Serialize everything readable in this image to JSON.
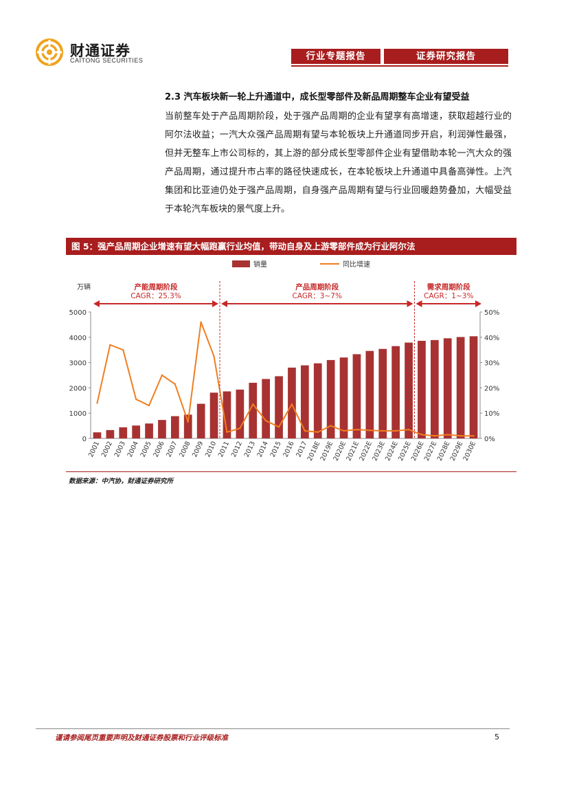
{
  "header": {
    "logo_cn": "财通证券",
    "logo_en": "CAITONG SECURITIES",
    "tab1": "行业专题报告",
    "tab2": "证券研究报告",
    "accent": "#a81d1d"
  },
  "section": {
    "title": "2.3  汽车板块新一轮上升通道中，成长型零部件及新品周期整车企业有望受益",
    "body": "当前整车处于产品周期阶段，处于强产品周期的企业有望享有高增速，获取超越行业的阿尔法收益；一汽大众强产品周期有望与本轮板块上升通道同步开启，利润弹性最强，但并无整车上市公司标的，其上游的部分成长型零部件企业有望借助本轮一汽大众的强产品周期，通过提升市占率的路径快速成长，在本轮板块上升通道中具备高弹性。上汽集团和比亚迪仍处于强产品周期，自身强产品周期有望与行业回暖趋势叠加，大幅受益于本轮汽车板块的景气度上升。"
  },
  "figure": {
    "title": "图 5：强产品周期企业增速有望大幅跑赢行业均值，带动自身及上游零部件成为行业阿尔法",
    "source": "数据来源：中汽协，财通证券研究所"
  },
  "chart_data": {
    "type": "bar+line",
    "categories": [
      "2001",
      "2002",
      "2003",
      "2004",
      "2005",
      "2006",
      "2007",
      "2008",
      "2009",
      "2010",
      "2011",
      "2012",
      "2013",
      "2014",
      "2015",
      "2016",
      "2017",
      "2018E",
      "2019E",
      "2020E",
      "2021E",
      "2022E",
      "2023E",
      "2024E",
      "2025E",
      "2026E",
      "2027E",
      "2028E",
      "2029E",
      "2030E"
    ],
    "series": [
      {
        "name": "销量",
        "kind": "bar",
        "axis": "left",
        "color": "#a83232",
        "values": [
          240,
          330,
          440,
          510,
          590,
          730,
          880,
          940,
          1370,
          1810,
          1860,
          1930,
          2200,
          2350,
          2460,
          2800,
          2890,
          2970,
          3100,
          3200,
          3330,
          3460,
          3540,
          3650,
          3790,
          3860,
          3890,
          3960,
          4010,
          4040
        ]
      },
      {
        "name": "同比增速",
        "kind": "line",
        "axis": "right",
        "color": "#f07d1e",
        "values": [
          14,
          37,
          35,
          15.5,
          13,
          25,
          21.5,
          6.5,
          46,
          32.5,
          2.5,
          4,
          13.5,
          7,
          4.5,
          13.5,
          3,
          2.5,
          5,
          3,
          3.5,
          3.2,
          3,
          3,
          3.5,
          1.5,
          1,
          1.5,
          1,
          1
        ]
      }
    ],
    "ylabel": "万辆",
    "ylim": [
      0,
      5000
    ],
    "yticks": [
      0,
      1000,
      2000,
      3000,
      4000,
      5000
    ],
    "y2lim": [
      0,
      50
    ],
    "y2ticks": [
      "0%",
      "10%",
      "20%",
      "30%",
      "40%",
      "50%"
    ],
    "legend_position": "top",
    "phases": [
      {
        "title": "产能周期阶段",
        "cagr": "CAGR：25.3%",
        "from": "2001",
        "to": "2010"
      },
      {
        "title": "产品周期阶段",
        "cagr": "CAGR：3~7%",
        "from": "2011",
        "to": "2025E"
      },
      {
        "title": "需求周期阶段",
        "cagr": "CAGR：1~3%",
        "from": "2026E",
        "to": "2030E"
      }
    ]
  },
  "footer": {
    "disclaimer": "谨请参阅尾页重要声明及财通证券股票和行业评级标准",
    "page": "5"
  }
}
